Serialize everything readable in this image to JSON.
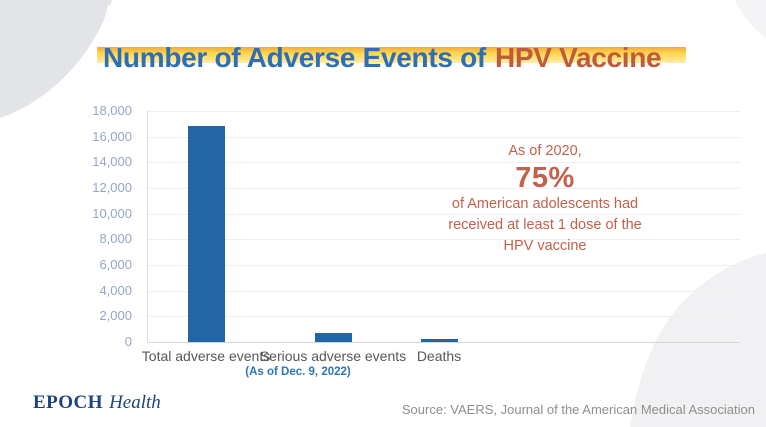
{
  "title": {
    "part1": "Number of Adverse Events of",
    "part2": "HPV Vaccine"
  },
  "chart_data": {
    "type": "bar",
    "title": "Number of Adverse Events of HPV Vaccine",
    "categories": [
      "Total adverse events",
      "Serious adverse events",
      "Deaths"
    ],
    "values": [
      16800,
      700,
      200
    ],
    "xlabel": "",
    "ylabel": "",
    "ylim": [
      0,
      18000
    ],
    "yticks": [
      0,
      2000,
      4000,
      6000,
      8000,
      10000,
      12000,
      14000,
      16000,
      18000
    ],
    "grid": true,
    "legend": "none",
    "bar_color": "#2167a8",
    "footnote": "(As of Dec. 9, 2022)"
  },
  "annotation": {
    "line1": "As of 2020,",
    "big": "75%",
    "line2": "of American adolescents had",
    "line3": "received at least 1 dose of the",
    "line4": "HPV vaccine"
  },
  "footer": {
    "logo_epoch": "EPOCH",
    "logo_health": "Health",
    "source": "Source: VAERS,  Journal of the American Medical Association"
  },
  "colors": {
    "title_blue": "#2e6eb5",
    "title_orange": "#c05a3d",
    "highlight_yellow": "#ffd64e",
    "bar_blue": "#2167a8",
    "ytick_blue": "#95a5c9",
    "xlabel_gray": "#575757",
    "footnote_blue": "#2e75b6",
    "annotation_red": "#c3614b",
    "logo_navy": "#1c4482",
    "source_gray": "#8e8e8e"
  }
}
